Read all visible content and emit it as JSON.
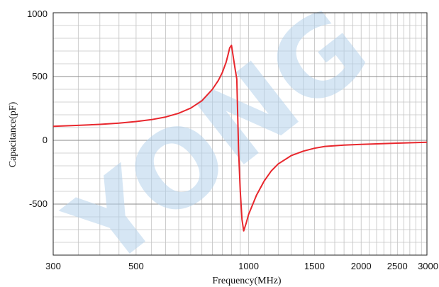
{
  "chart_data": {
    "type": "line",
    "title": "",
    "xlabel": "Frequency(MHz)",
    "ylabel": "Capacitance(pF)",
    "x_scale": "log",
    "xlim": [
      300,
      3000
    ],
    "ylim": [
      -900,
      1000
    ],
    "x_ticks": [
      300,
      500,
      1000,
      1500,
      2000,
      2500,
      3000
    ],
    "x_tick_labels": [
      "300",
      "500",
      "1000",
      "1500",
      "2000",
      "2500",
      "3000"
    ],
    "y_ticks": [
      1000,
      500,
      0,
      -500
    ],
    "y_tick_labels": [
      "1000",
      "500",
      "0",
      "-500"
    ],
    "grid": true,
    "line_color": "#e8272d",
    "watermark_text": "YONG",
    "series": [
      {
        "x": [
          300,
          350,
          400,
          450,
          500,
          550,
          600,
          650,
          700,
          750,
          800,
          830,
          850,
          870,
          880,
          890,
          900,
          910,
          920,
          930,
          940,
          950,
          960,
          970,
          985,
          1000,
          1050,
          1100,
          1150,
          1200,
          1300,
          1400,
          1500,
          1600,
          1800,
          2000,
          2500,
          3000
        ],
        "y": [
          110,
          117,
          125,
          135,
          147,
          162,
          183,
          212,
          252,
          310,
          400,
          470,
          530,
          610,
          665,
          725,
          745,
          650,
          560,
          480,
          -80,
          -400,
          -620,
          -710,
          -650,
          -580,
          -430,
          -320,
          -240,
          -185,
          -120,
          -85,
          -62,
          -48,
          -38,
          -32,
          -22,
          -15
        ]
      }
    ]
  }
}
